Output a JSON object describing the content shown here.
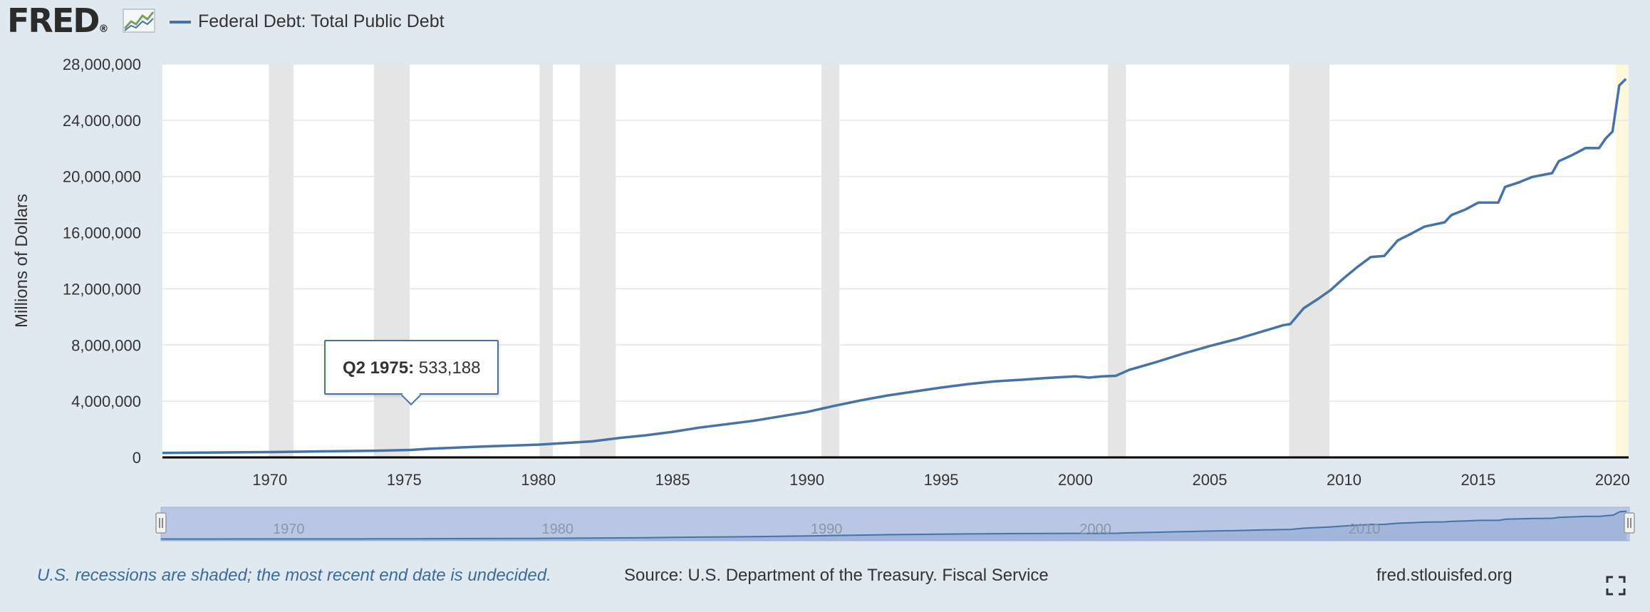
{
  "header": {
    "logo_text": "FRED",
    "logo_mark": "®",
    "logo_icon": "line-chart-icon",
    "series_label": "Federal Debt: Total Public Debt",
    "series_color": "#4572a7"
  },
  "tooltip": {
    "period": "Q2 1975:",
    "value": "533,188"
  },
  "footer": {
    "note": "U.S. recessions are shaded; the most recent end date is undecided.",
    "source": "Source: U.S. Department of the Treasury. Fiscal Service",
    "url": "fred.stlouisfed.org",
    "fullscreen_icon": "fullscreen-icon"
  },
  "colors": {
    "page_background": "#e1e9f0",
    "plot_background": "#ffffff",
    "line": "#4572a7",
    "recession_band": "#e5e5e5",
    "undecided_recession_band": "#fdf8dc",
    "navigator_fill": "#b9c7e4",
    "gridline": "#e6e6e6"
  },
  "chart_data": {
    "type": "line",
    "title": "",
    "xlabel": "",
    "ylabel": "Millions of Dollars",
    "xlim": [
      1966.0,
      2020.6
    ],
    "ylim": [
      0,
      28000000
    ],
    "grid": true,
    "legend_position": "top-left",
    "x_ticks": [
      1970,
      1975,
      1980,
      1985,
      1990,
      1995,
      2000,
      2005,
      2010,
      2015,
      2020
    ],
    "x_tick_labels": [
      "1970",
      "1975",
      "1980",
      "1985",
      "1990",
      "1995",
      "2000",
      "2005",
      "2010",
      "2015",
      "2020"
    ],
    "y_ticks": [
      0,
      4000000,
      8000000,
      12000000,
      16000000,
      20000000,
      24000000,
      28000000
    ],
    "y_tick_labels": [
      "0",
      "4,000,000",
      "8,000,000",
      "12,000,000",
      "16,000,000",
      "20,000,000",
      "24,000,000",
      "28,000,000"
    ],
    "recessions": [
      [
        1969.96,
        1970.88
      ],
      [
        1973.88,
        1975.21
      ],
      [
        1980.04,
        1980.54
      ],
      [
        1981.54,
        1982.88
      ],
      [
        1990.54,
        1991.21
      ],
      [
        2001.21,
        2001.88
      ],
      [
        2007.96,
        2009.46
      ],
      [
        2020.13,
        2020.6
      ]
    ],
    "navigator": {
      "tick_labels": [
        "1970",
        "1980",
        "1990",
        "2000",
        "2010"
      ],
      "tick_values": [
        1970,
        1980,
        1990,
        2000,
        2010
      ]
    },
    "series": [
      {
        "name": "Federal Debt: Total Public Debt",
        "x": [
          1966.0,
          1968.0,
          1970.0,
          1972.0,
          1974.0,
          1975.25,
          1976.0,
          1978.0,
          1980.0,
          1982.0,
          1983.0,
          1984.0,
          1985.0,
          1986.0,
          1988.0,
          1990.0,
          1991.0,
          1992.0,
          1993.0,
          1994.0,
          1995.0,
          1996.0,
          1997.0,
          1998.0,
          1999.0,
          2000.0,
          2000.5,
          2001.0,
          2001.5,
          2002.0,
          2003.0,
          2004.0,
          2005.0,
          2006.0,
          2007.0,
          2007.75,
          2008.0,
          2008.5,
          2009.0,
          2009.5,
          2010.0,
          2010.5,
          2011.0,
          2011.5,
          2012.0,
          2012.5,
          2013.0,
          2013.75,
          2014.0,
          2014.5,
          2015.0,
          2015.75,
          2016.0,
          2016.5,
          2017.0,
          2017.75,
          2018.0,
          2018.5,
          2019.0,
          2019.5,
          2019.75,
          2020.0,
          2020.25,
          2020.5
        ],
        "values": [
          320000,
          350000,
          380000,
          430000,
          475000,
          533188,
          620000,
          780000,
          910000,
          1140000,
          1380000,
          1570000,
          1820000,
          2120000,
          2600000,
          3230000,
          3660000,
          4060000,
          4410000,
          4690000,
          4970000,
          5220000,
          5410000,
          5530000,
          5660000,
          5770000,
          5680000,
          5770000,
          5810000,
          6230000,
          6780000,
          7380000,
          7930000,
          8420000,
          8990000,
          9420000,
          9490000,
          10620000,
          11240000,
          11910000,
          12770000,
          13560000,
          14270000,
          14340000,
          15440000,
          15920000,
          16430000,
          16740000,
          17250000,
          17630000,
          18140000,
          18150000,
          19260000,
          19570000,
          19960000,
          20240000,
          21090000,
          21520000,
          22030000,
          22020000,
          22720000,
          23200000,
          26480000,
          26950000
        ]
      }
    ]
  }
}
